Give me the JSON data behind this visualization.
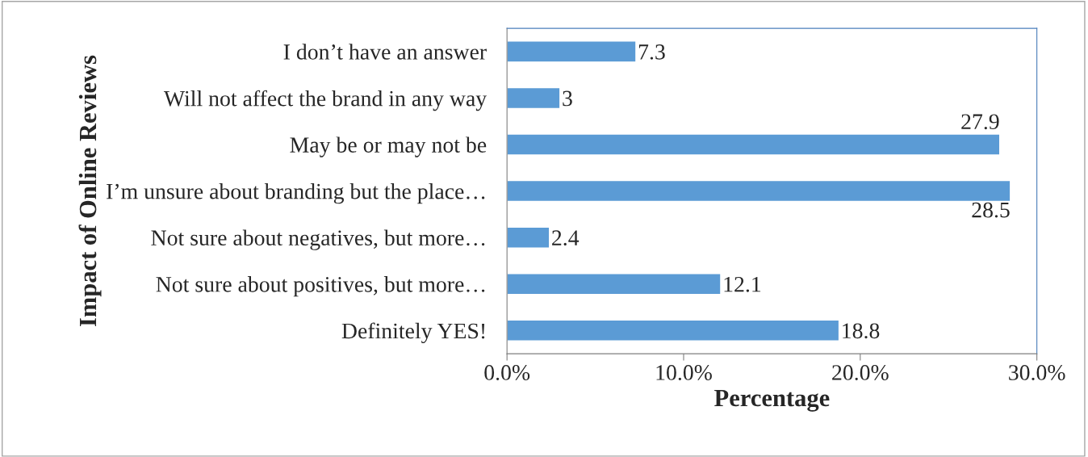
{
  "chart_data": {
    "type": "bar",
    "orientation": "horizontal",
    "categories": [
      "I don’t have an answer",
      "Will not affect the brand in any way",
      "May be or may not be",
      "I’m unsure about branding but the place…",
      "Not sure about negatives, but more…",
      "Not sure about positives, but more…",
      "Definitely YES!"
    ],
    "values": [
      7.3,
      3,
      27.9,
      28.5,
      2.4,
      12.1,
      18.8
    ],
    "color": "#5b9bd5",
    "xlim": [
      0,
      30
    ],
    "xticks": [
      {
        "value": 0,
        "label": "0.0%"
      },
      {
        "value": 10,
        "label": "10.0%"
      },
      {
        "value": 20,
        "label": "20.0%"
      },
      {
        "value": 30,
        "label": "30.0%"
      }
    ],
    "xlabel": "Percentage",
    "ylabel": "Impact of Online Reviews",
    "data_labels": true,
    "grid": false,
    "legend": false
  }
}
